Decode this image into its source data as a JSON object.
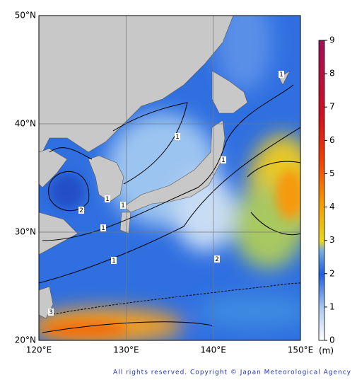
{
  "map": {
    "lat_ticks": [
      {
        "value": 50,
        "label": "50°N"
      },
      {
        "value": 40,
        "label": "40°N"
      },
      {
        "value": 30,
        "label": "30°N"
      },
      {
        "value": 20,
        "label": "20°N"
      }
    ],
    "lon_ticks": [
      {
        "value": 120,
        "label": "120°E"
      },
      {
        "value": 130,
        "label": "130°E"
      },
      {
        "value": 140,
        "label": "140°E"
      },
      {
        "value": 150,
        "label": "150°E"
      }
    ],
    "contour_labels": [
      "1",
      "1",
      "1",
      "1",
      "1",
      "1",
      "1",
      "2",
      "2",
      "3"
    ]
  },
  "colorbar": {
    "ticks": [
      0,
      1,
      2,
      3,
      4,
      5,
      6,
      7,
      8,
      9
    ],
    "unit": "(m)"
  },
  "copyright": "All rights reserved. Copyright © Japan Meteorological Agency"
}
